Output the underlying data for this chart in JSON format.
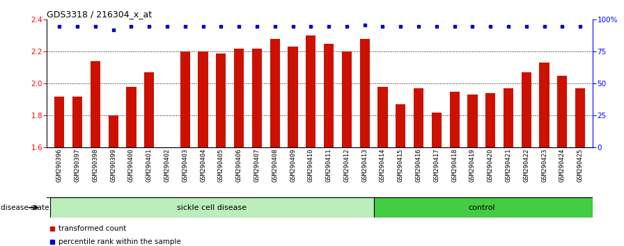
{
  "title": "GDS3318 / 216304_x_at",
  "categories": [
    "GSM290396",
    "GSM290397",
    "GSM290398",
    "GSM290399",
    "GSM290400",
    "GSM290401",
    "GSM290402",
    "GSM290403",
    "GSM290404",
    "GSM290405",
    "GSM290406",
    "GSM290407",
    "GSM290408",
    "GSM290409",
    "GSM290410",
    "GSM290411",
    "GSM290412",
    "GSM290413",
    "GSM290414",
    "GSM290415",
    "GSM290416",
    "GSM290417",
    "GSM290418",
    "GSM290419",
    "GSM290420",
    "GSM290421",
    "GSM290422",
    "GSM290423",
    "GSM290424",
    "GSM290425"
  ],
  "bar_values": [
    1.92,
    1.92,
    2.14,
    1.8,
    1.98,
    2.07,
    1.6,
    2.2,
    2.2,
    2.19,
    2.22,
    2.22,
    2.28,
    2.23,
    2.3,
    2.25,
    2.2,
    2.28,
    1.98,
    1.87,
    1.97,
    1.82,
    1.95,
    1.93,
    1.94,
    1.97,
    2.07,
    2.13,
    2.05,
    1.97
  ],
  "percentile_values": [
    95,
    95,
    95,
    92,
    95,
    95,
    95,
    95,
    95,
    95,
    95,
    95,
    95,
    95,
    95,
    95,
    95,
    96,
    95,
    95,
    95,
    95,
    95,
    95,
    95,
    95,
    95,
    95,
    95,
    95
  ],
  "sickle_cell_count": 18,
  "control_count": 12,
  "bar_color": "#cc1100",
  "dot_color": "#0000cc",
  "sickle_color": "#bbeebb",
  "control_color": "#44cc44",
  "ylim_left": [
    1.6,
    2.4
  ],
  "ylim_right": [
    0,
    100
  ],
  "yticks_left": [
    1.6,
    1.8,
    2.0,
    2.2,
    2.4
  ],
  "yticks_right": [
    0,
    25,
    50,
    75,
    100
  ],
  "ytick_labels_right": [
    "0",
    "25",
    "50",
    "75",
    "100%"
  ],
  "grid_values": [
    1.8,
    2.0,
    2.2
  ],
  "xtick_bg_color": "#cccccc",
  "separator_color": "#222222",
  "legend_red_label": "transformed count",
  "legend_blue_label": "percentile rank within the sample",
  "disease_state_label": "disease state",
  "sickle_label": "sickle cell disease",
  "control_label": "control"
}
